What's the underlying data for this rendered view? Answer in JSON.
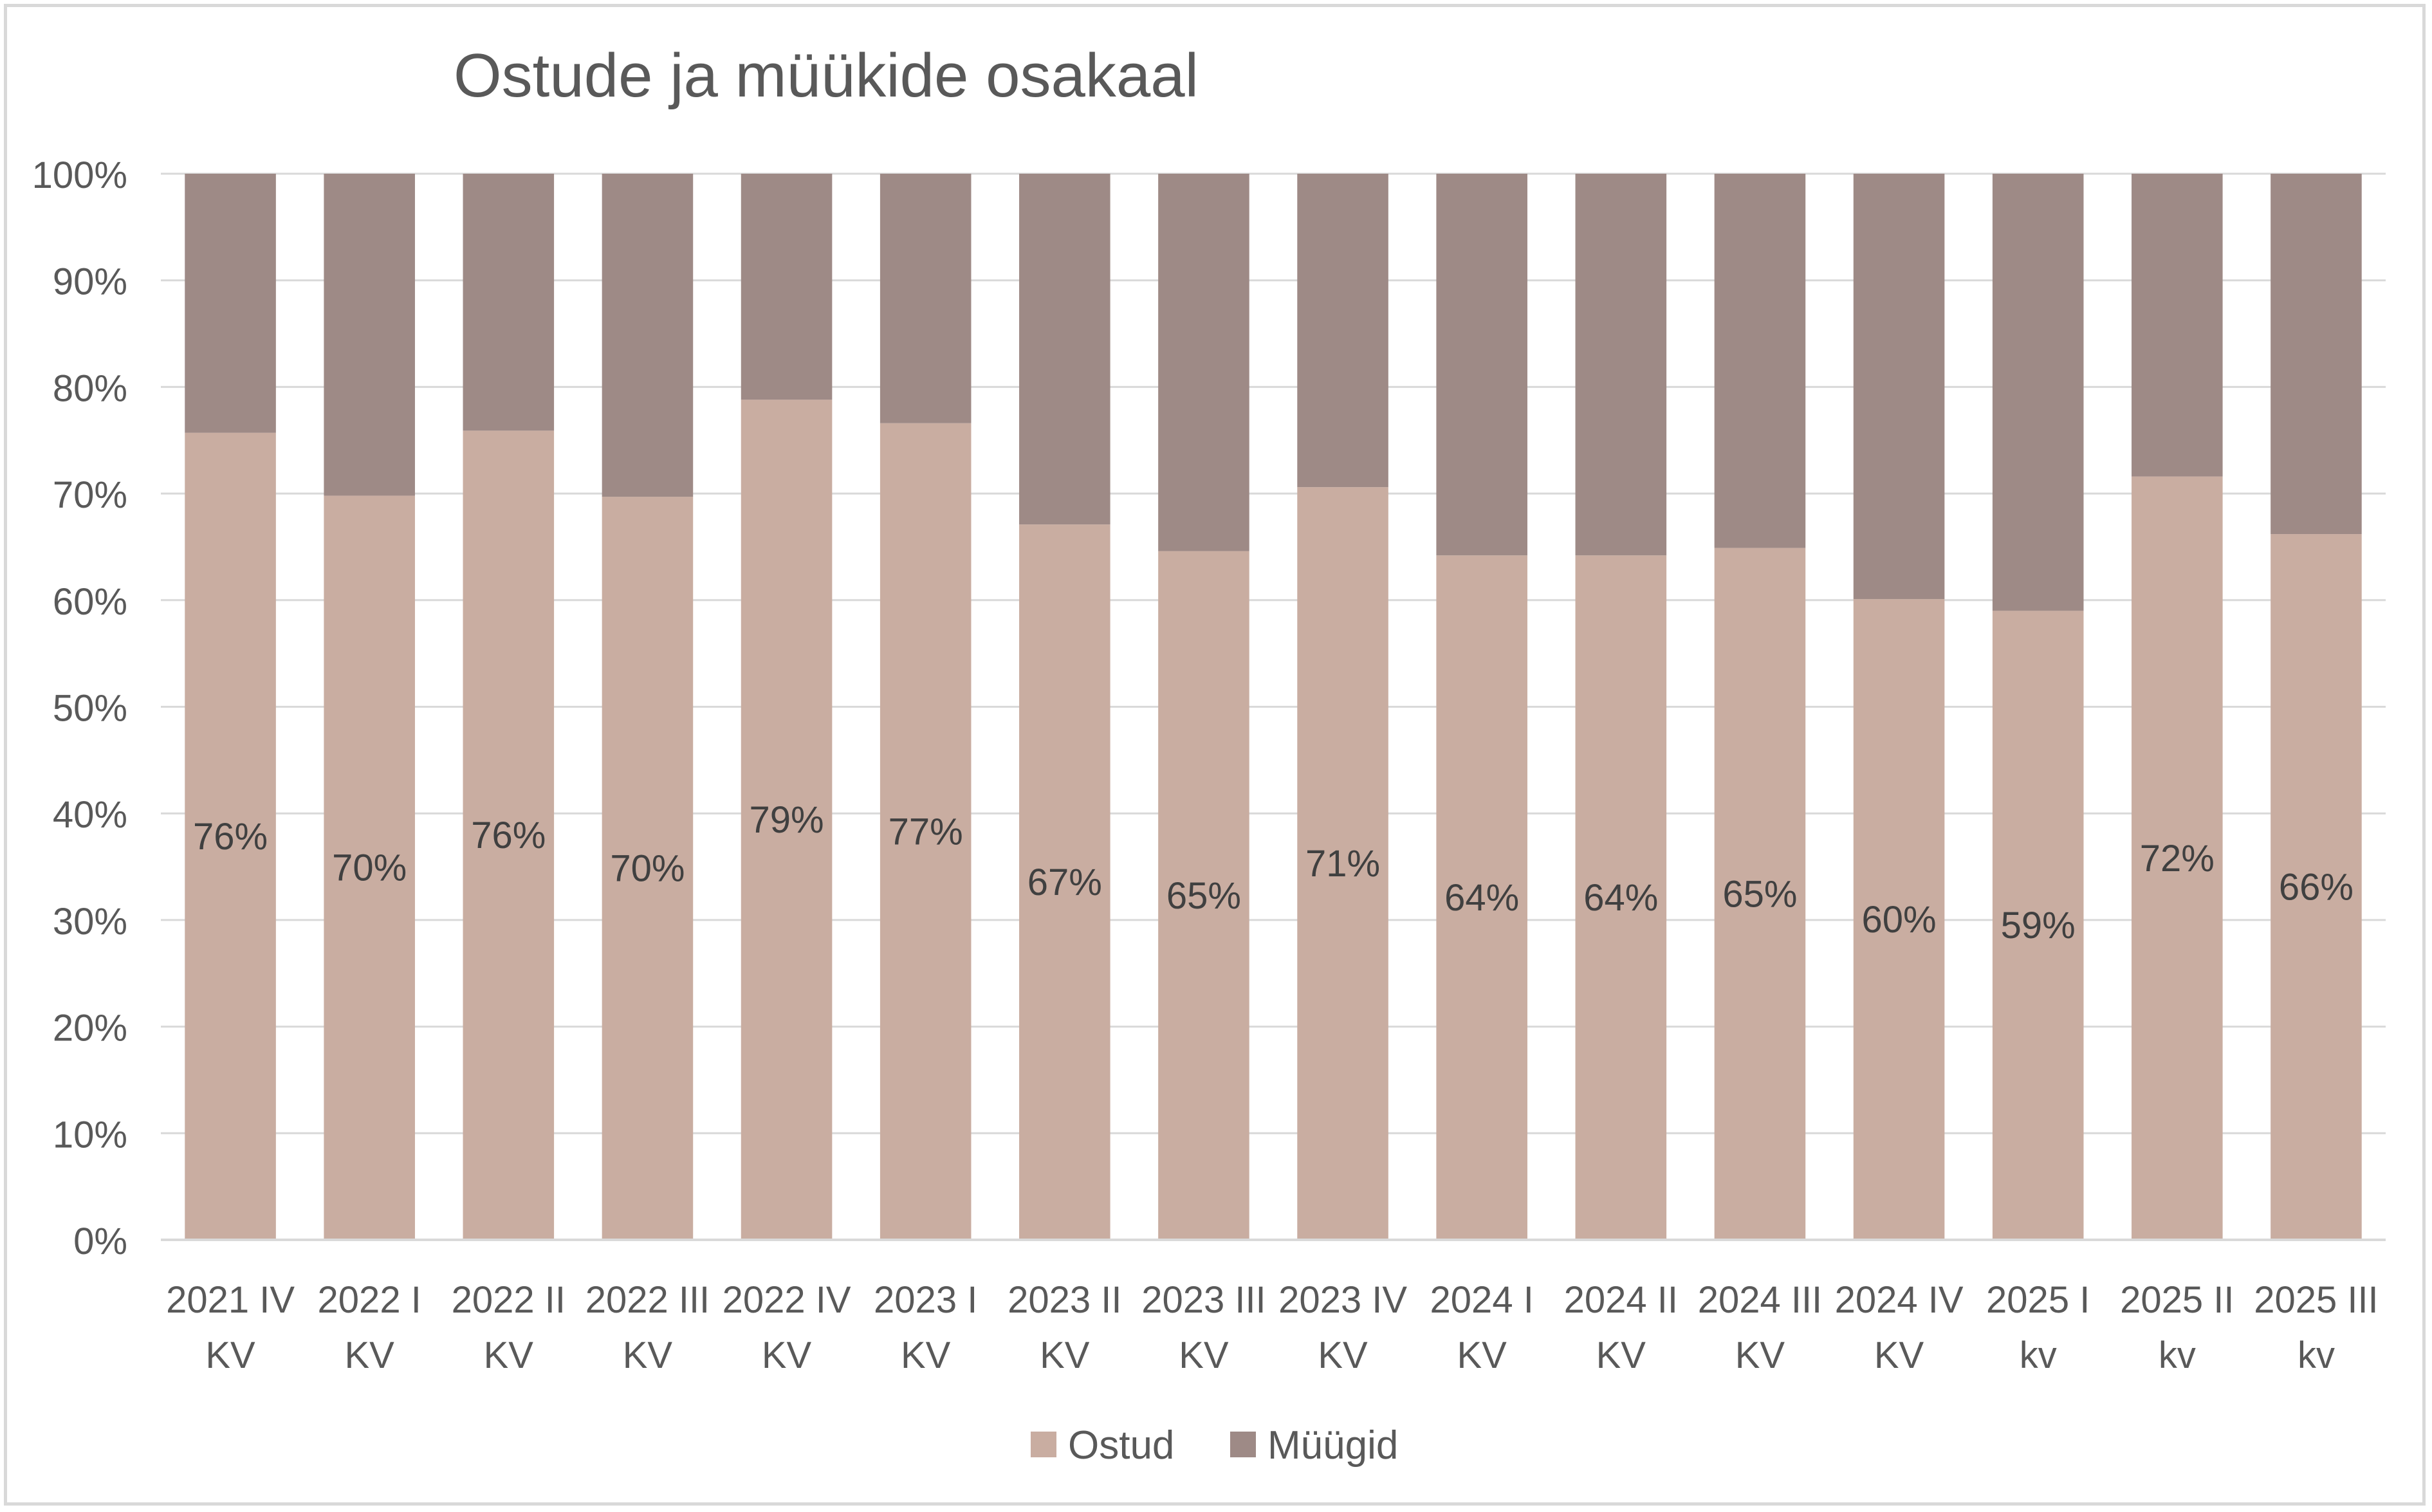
{
  "chart_data": {
    "type": "bar",
    "stacked": "percent",
    "title": "Ostude ja müükide osakaal",
    "xlabel": "",
    "ylabel": "",
    "ylim": [
      0,
      100
    ],
    "y_ticks": [
      "0%",
      "10%",
      "20%",
      "30%",
      "40%",
      "50%",
      "60%",
      "70%",
      "80%",
      "90%",
      "100%"
    ],
    "grid": true,
    "legend_position": "bottom",
    "categories": [
      [
        "2021 IV",
        "KV"
      ],
      [
        "2022 I",
        "KV"
      ],
      [
        "2022 II",
        "KV"
      ],
      [
        "2022 III",
        "KV"
      ],
      [
        "2022 IV",
        "KV"
      ],
      [
        "2023 I",
        "KV"
      ],
      [
        "2023 II",
        "KV"
      ],
      [
        "2023 III",
        "KV"
      ],
      [
        "2023 IV",
        "KV"
      ],
      [
        "2024 I",
        "KV"
      ],
      [
        "2024 II",
        "KV"
      ],
      [
        "2024 III",
        "KV"
      ],
      [
        "2024 IV",
        "KV"
      ],
      [
        "2025 I",
        "kv"
      ],
      [
        "2025 II",
        "kv"
      ],
      [
        "2025 III",
        "kv"
      ]
    ],
    "series": [
      {
        "name": "Ostud",
        "color": "#c9ada1",
        "values": [
          75.7,
          69.8,
          75.9,
          69.7,
          78.8,
          76.6,
          67.1,
          64.6,
          70.6,
          64.2,
          64.2,
          64.9,
          60.1,
          59.0,
          71.6,
          66.2
        ],
        "data_labels": [
          "76%",
          "70%",
          "76%",
          "70%",
          "79%",
          "77%",
          "67%",
          "65%",
          "71%",
          "64%",
          "64%",
          "65%",
          "60%",
          "59%",
          "72%",
          "66%"
        ]
      },
      {
        "name": "Müügid",
        "color": "#9e8a86",
        "values": [
          24.3,
          30.2,
          24.1,
          30.3,
          21.2,
          23.4,
          32.9,
          35.4,
          29.4,
          35.8,
          35.8,
          35.1,
          39.9,
          41.0,
          28.4,
          33.8
        ]
      }
    ],
    "colors": {
      "title": "#595959",
      "axis_text": "#595959",
      "data_label": "#404040",
      "gridline": "#d9d9d9"
    }
  }
}
